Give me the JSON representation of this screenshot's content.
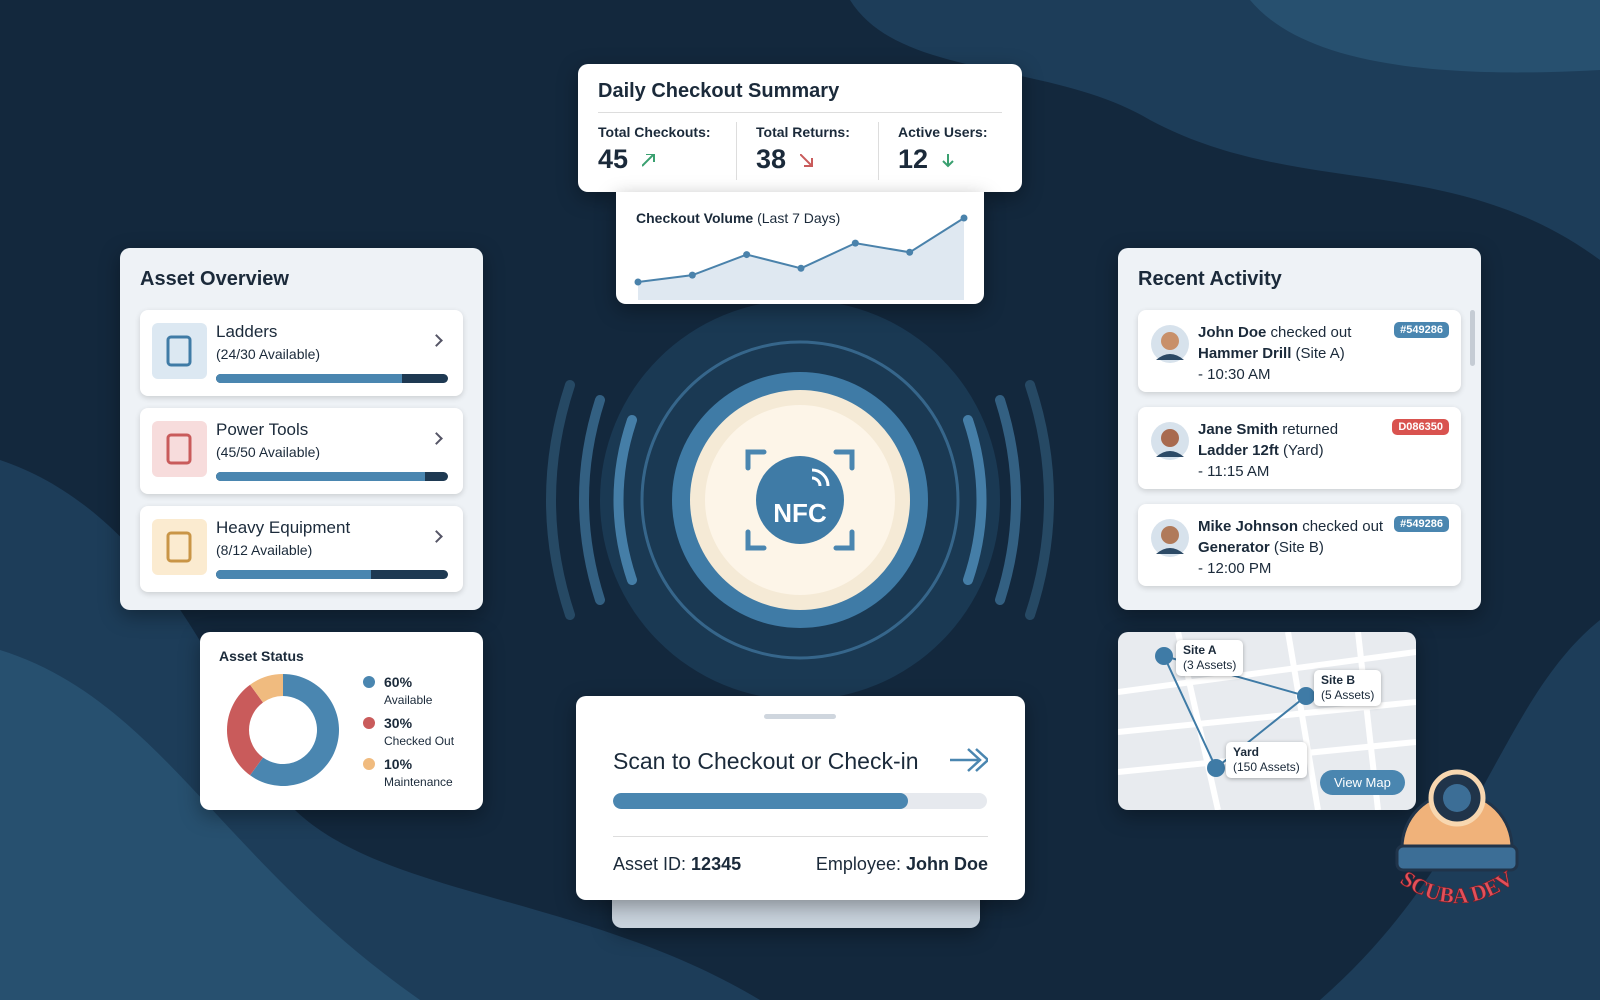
{
  "summary": {
    "title": "Daily Checkout Summary",
    "stats": [
      {
        "label": "Total Checkouts:",
        "value": 45
      },
      {
        "label": "Total Returns:",
        "value": 38
      },
      {
        "label": "Active Users:",
        "value": 12
      }
    ]
  },
  "chart_data": [
    {
      "type": "line",
      "title": "Checkout Volume",
      "subtitle": "(Last 7 Days)",
      "values": [
        12,
        15,
        24,
        18,
        29,
        25,
        40
      ],
      "color": "#4a82ab"
    },
    {
      "type": "donut",
      "title": "Asset Status",
      "categories": [
        "Available",
        "Checked Out",
        "Maintenance"
      ],
      "values": [
        60,
        30,
        10
      ],
      "value_labels": [
        "60%",
        "30%",
        "10%"
      ],
      "colors": [
        "#4a86b0",
        "#c95b5b",
        "#f0bb7f"
      ]
    }
  ],
  "asset_overview": {
    "title": "Asset Overview",
    "items": [
      {
        "name": "Ladders",
        "availability": "(24/30 Available)",
        "fill": 80
      },
      {
        "name": "Power Tools",
        "availability": "(45/50 Available)",
        "fill": 90
      },
      {
        "name": "Heavy Equipment",
        "availability": "(8/12 Available)",
        "fill": 67
      }
    ]
  },
  "nfc": {
    "label": "NFC"
  },
  "recent_activity": {
    "title": "Recent Activity",
    "items": [
      {
        "name": "John Doe",
        "verb": "checked out",
        "item": "Hammer Drill",
        "place": "(Site A)",
        "time": "- 10:30 AM",
        "tag": "#549286"
      },
      {
        "name": "Jane Smith",
        "verb": "returned",
        "item": "Ladder 12ft",
        "place": "(Yard)",
        "time": "- 11:15 AM",
        "tag": "D086350"
      },
      {
        "name": "Mike Johnson",
        "verb": "checked out",
        "item": "Generator",
        "place": "(Site B)",
        "time": "- 12:00 PM",
        "tag": "#549286"
      }
    ]
  },
  "map": {
    "sites": [
      {
        "name": "Site A",
        "count": "(3 Assets)"
      },
      {
        "name": "Site B",
        "count": "(5 Assets)"
      },
      {
        "name": "Yard",
        "count": "(150 Assets)"
      }
    ],
    "button": "View Map"
  },
  "scan": {
    "title": "Scan to Checkout or Check-in",
    "progress": 79,
    "asset_label": "Asset ID:",
    "asset_id": "12345",
    "employee_label": "Employee:",
    "employee": "John Doe"
  },
  "logo": {
    "text": "SCUBA DEV"
  }
}
